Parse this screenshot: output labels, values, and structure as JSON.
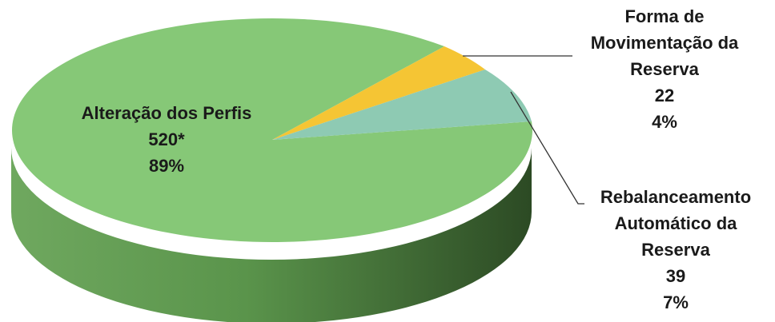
{
  "chart_data": {
    "type": "pie",
    "title": "",
    "slices": [
      {
        "label_lines": [
          "Alteração dos Perfis"
        ],
        "display_value": "520*",
        "value": 520,
        "percent": "89%",
        "color": "#86c877",
        "side_color": "#5f9a52"
      },
      {
        "label_lines": [
          "Forma de",
          "Movimentação da",
          "Reserva"
        ],
        "display_value": "22",
        "value": 22,
        "percent": "4%",
        "color": "#f5c534",
        "side_color": "#c9a020"
      },
      {
        "label_lines": [
          "Rebalanceamento",
          "Automático da",
          "Reserva"
        ],
        "display_value": "39",
        "value": 39,
        "percent": "7%",
        "color": "#8ecab3",
        "side_color": "#5c9a86"
      }
    ]
  }
}
